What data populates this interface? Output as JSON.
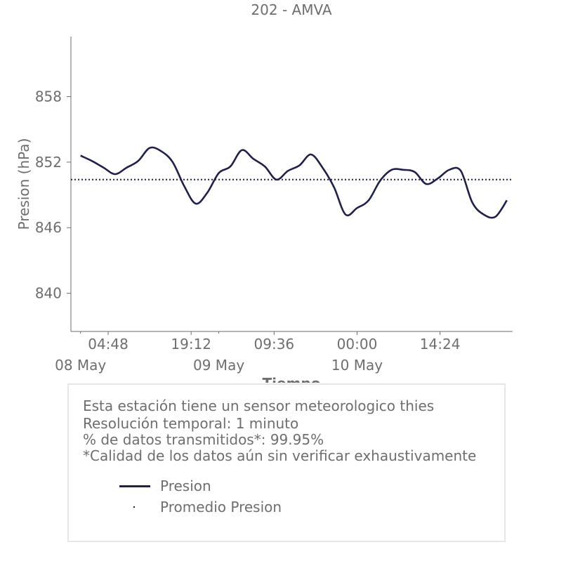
{
  "chart_data": {
    "type": "line",
    "title": "202 - AMVA",
    "xlabel": "Tiempo",
    "ylabel": "Presion (hPa)",
    "ylim": [
      836.5,
      863.5
    ],
    "yticks": [
      840,
      846,
      852,
      858
    ],
    "x_tick_labels": [
      "04:48",
      "19:12",
      "09:36",
      "00:00",
      "14:24"
    ],
    "date_labels": [
      "08 May",
      "09 May",
      "10 May"
    ],
    "grid": false,
    "legend_placement": "below chart",
    "series": [
      {
        "name": "Presion",
        "color": "#20204a",
        "style": "solid",
        "x": [
          "2024-05-08 00:00",
          "2024-05-08 02:00",
          "2024-05-08 04:00",
          "2024-05-08 06:00",
          "2024-05-08 08:00",
          "2024-05-08 10:00",
          "2024-05-08 12:00",
          "2024-05-08 14:00",
          "2024-05-08 16:00",
          "2024-05-08 18:00",
          "2024-05-08 20:00",
          "2024-05-08 22:00",
          "2024-05-09 00:00",
          "2024-05-09 02:00",
          "2024-05-09 04:00",
          "2024-05-09 06:00",
          "2024-05-09 08:00",
          "2024-05-09 10:00",
          "2024-05-09 12:00",
          "2024-05-09 14:00",
          "2024-05-09 16:00",
          "2024-05-09 18:00",
          "2024-05-09 20:00",
          "2024-05-09 22:00",
          "2024-05-10 00:00",
          "2024-05-10 02:00",
          "2024-05-10 04:00",
          "2024-05-10 06:00",
          "2024-05-10 08:00",
          "2024-05-10 10:00",
          "2024-05-10 12:00",
          "2024-05-10 14:00",
          "2024-05-10 16:00",
          "2024-05-10 18:00",
          "2024-05-10 20:00"
        ],
        "values": [
          852.6,
          852.1,
          851.5,
          850.9,
          851.5,
          852.1,
          853.3,
          853.0,
          852.0,
          849.8,
          848.2,
          849.2,
          851.0,
          851.6,
          853.1,
          852.3,
          851.6,
          850.4,
          851.2,
          851.7,
          852.7,
          851.5,
          849.7,
          847.2,
          847.8,
          848.5,
          850.3,
          851.3,
          851.3,
          851.1,
          850.0,
          850.5,
          851.3,
          851.2,
          848.3
        ]
      },
      {
        "name": "Promedio Presion",
        "color": "#20204a",
        "style": "dotted",
        "values": [
          850.4
        ]
      }
    ]
  },
  "series_tail": {
    "x": [
      "2024-05-10 22:00",
      "2024-05-11 00:00",
      "2024-05-11 02:00"
    ],
    "values": [
      847.2,
      847.0,
      848.5
    ]
  },
  "info": {
    "line1": "Esta estación tiene un sensor meteorologico thies",
    "line2": "Resolución temporal: 1 minuto",
    "line3": "% de datos transmitidos*: 99.95%",
    "line4": "*Calidad de los datos aún sin verificar exhaustivamente"
  },
  "legend": {
    "presion": "Presion",
    "promedio": "Promedio Presion"
  }
}
